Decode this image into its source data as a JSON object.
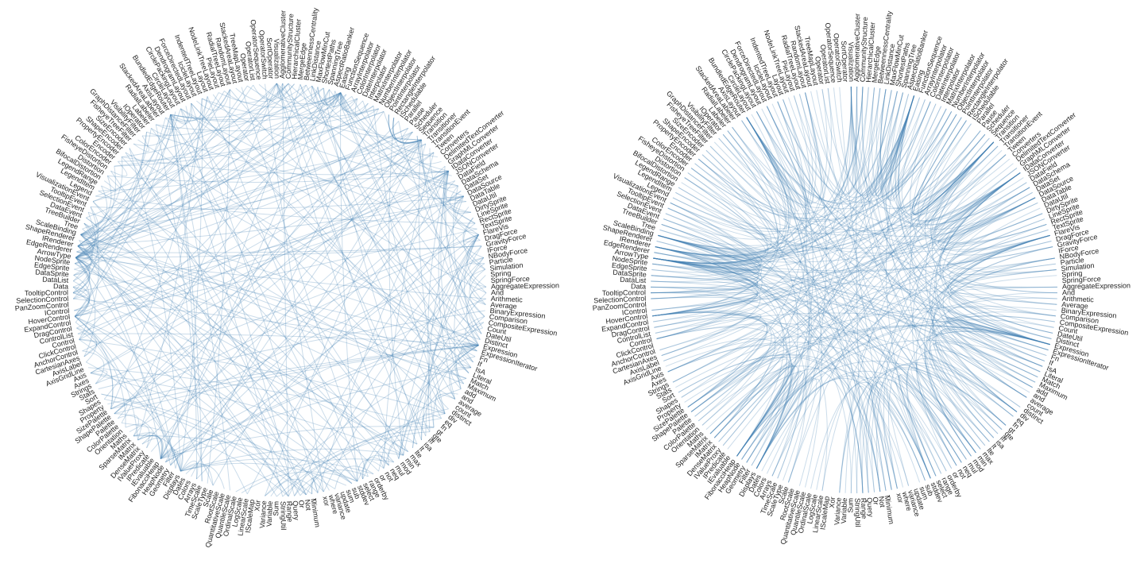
{
  "nodes": [
    "AgglomerativeCluster",
    "CommunityStructure",
    "HierarchicalCluster",
    "MergeEdge",
    "BetweennessCentrality",
    "LinkDistance",
    "MaxFlowMinCut",
    "ShortestPaths",
    "SpanningTree",
    "AspectRatioBanker",
    "Easing",
    "FunctionSequence",
    "ArrayInterpolator",
    "ColorInterpolator",
    "DateInterpolator",
    "Interpolator",
    "MatrixInterpolator",
    "NumberInterpolator",
    "ObjectInterpolator",
    "PointInterpolator",
    "RectangleInterpolator",
    "ISchedulable",
    "Parallel",
    "Pause",
    "Scheduler",
    "Sequence",
    "Transition",
    "Transitioner",
    "TransitionEvent",
    "Tween",
    "Converters",
    "DelimitedTextConverter",
    "GraphMLConverter",
    "IDataConverter",
    "JSONConverter",
    "DataField",
    "DataSchema",
    "DataSet",
    "DataSource",
    "DataTable",
    "DataUtil",
    "DirtySprite",
    "LineSprite",
    "RectSprite",
    "TextSprite",
    "FlareVis",
    "DragForce",
    "GravityForce",
    "IForce",
    "NBodyForce",
    "Particle",
    "Simulation",
    "Spring",
    "SpringForce",
    "AggregateExpression",
    "And",
    "Arithmetic",
    "Average",
    "BinaryExpression",
    "Comparison",
    "CompositeExpression",
    "Count",
    "DateUtil",
    "Distinct",
    "Expression",
    "ExpressionIterator",
    "Fn",
    "If",
    "IsA",
    "Literal",
    "Match",
    "Maximum",
    "add",
    "and",
    "average",
    "count",
    "distinct",
    "div",
    "eq",
    "fn",
    "gt",
    "gte",
    "iff",
    "isa",
    "lt",
    "lte",
    "max",
    "min",
    "mod",
    "mul",
    "neq",
    "not",
    "or",
    "orderby",
    "range",
    "select",
    "stddev",
    "sub",
    "sum",
    "update",
    "variance",
    "where",
    "xor",
    "_",
    "Minimum",
    "Not",
    "Or",
    "Query",
    "Range",
    "StringUtil",
    "Sum",
    "Variable",
    "Variance",
    "Xor",
    "IScaleMap",
    "LinearScale",
    "LogScale",
    "OrdinalScale",
    "QuantileScale",
    "QuantitativeScale",
    "RootScale",
    "Scale",
    "ScaleType",
    "TimeScale",
    "Arrays",
    "Colors",
    "Dates",
    "Displays",
    "Filter",
    "Geometry",
    "HeapNode",
    "FibonacciHeap",
    "IEvaluable",
    "IPredicate",
    "IValueProxy",
    "DenseMatrix",
    "IMatrix",
    "SparseMatrix",
    "Maths",
    "Orientation",
    "ColorPalette",
    "Palette",
    "ShapePalette",
    "SizePalette",
    "Property",
    "Shapes",
    "Sort",
    "Stats",
    "Strings",
    "Axes",
    "Axis",
    "AxisGridLine",
    "AxisLabel",
    "CartesianAxes",
    "AnchorControl",
    "ClickControl",
    "Control",
    "ControlList",
    "DragControl",
    "ExpandControl",
    "HoverControl",
    "IControl",
    "PanZoomControl",
    "SelectionControl",
    "TooltipControl",
    "Data",
    "DataList",
    "DataSprite",
    "EdgeSprite",
    "NodeSprite",
    "ArrowType",
    "EdgeRenderer",
    "IRenderer",
    "ShapeRenderer",
    "ScaleBinding",
    "Tree",
    "TreeBuilder",
    "DataEvent",
    "SelectionEvent",
    "TooltipEvent",
    "VisualizationEvent",
    "Legend",
    "LegendItem",
    "LegendRange",
    "BifocalDistortion",
    "Distortion",
    "FisheyeDistortion",
    "ColorEncoder",
    "Encoder",
    "PropertyEncoder",
    "ShapeEncoder",
    "SizeEncoder",
    "FisheyeTreeFilter",
    "GraphDistanceFilter",
    "VisibilityFilter",
    "IOperator",
    "Labeler",
    "RadialLabeler",
    "StackedAreaLabeler",
    "AxisLayout",
    "BundledEdgeRouter",
    "CircleLayout",
    "CirclePackingLayout",
    "DendrogramLayout",
    "ForceDirectedLayout",
    "IcicleLayout",
    "IndentedTreeLayout",
    "Layout",
    "NodeLinkTreeLayout",
    "PieLayout",
    "RadialTreeLayout",
    "RandomLayout",
    "StackedAreaLayout",
    "TreeMapLayout",
    "Operator",
    "OperatorList",
    "OperatorSequence",
    "OperatorSwitch",
    "SortOperator",
    "Visualization"
  ]
}
